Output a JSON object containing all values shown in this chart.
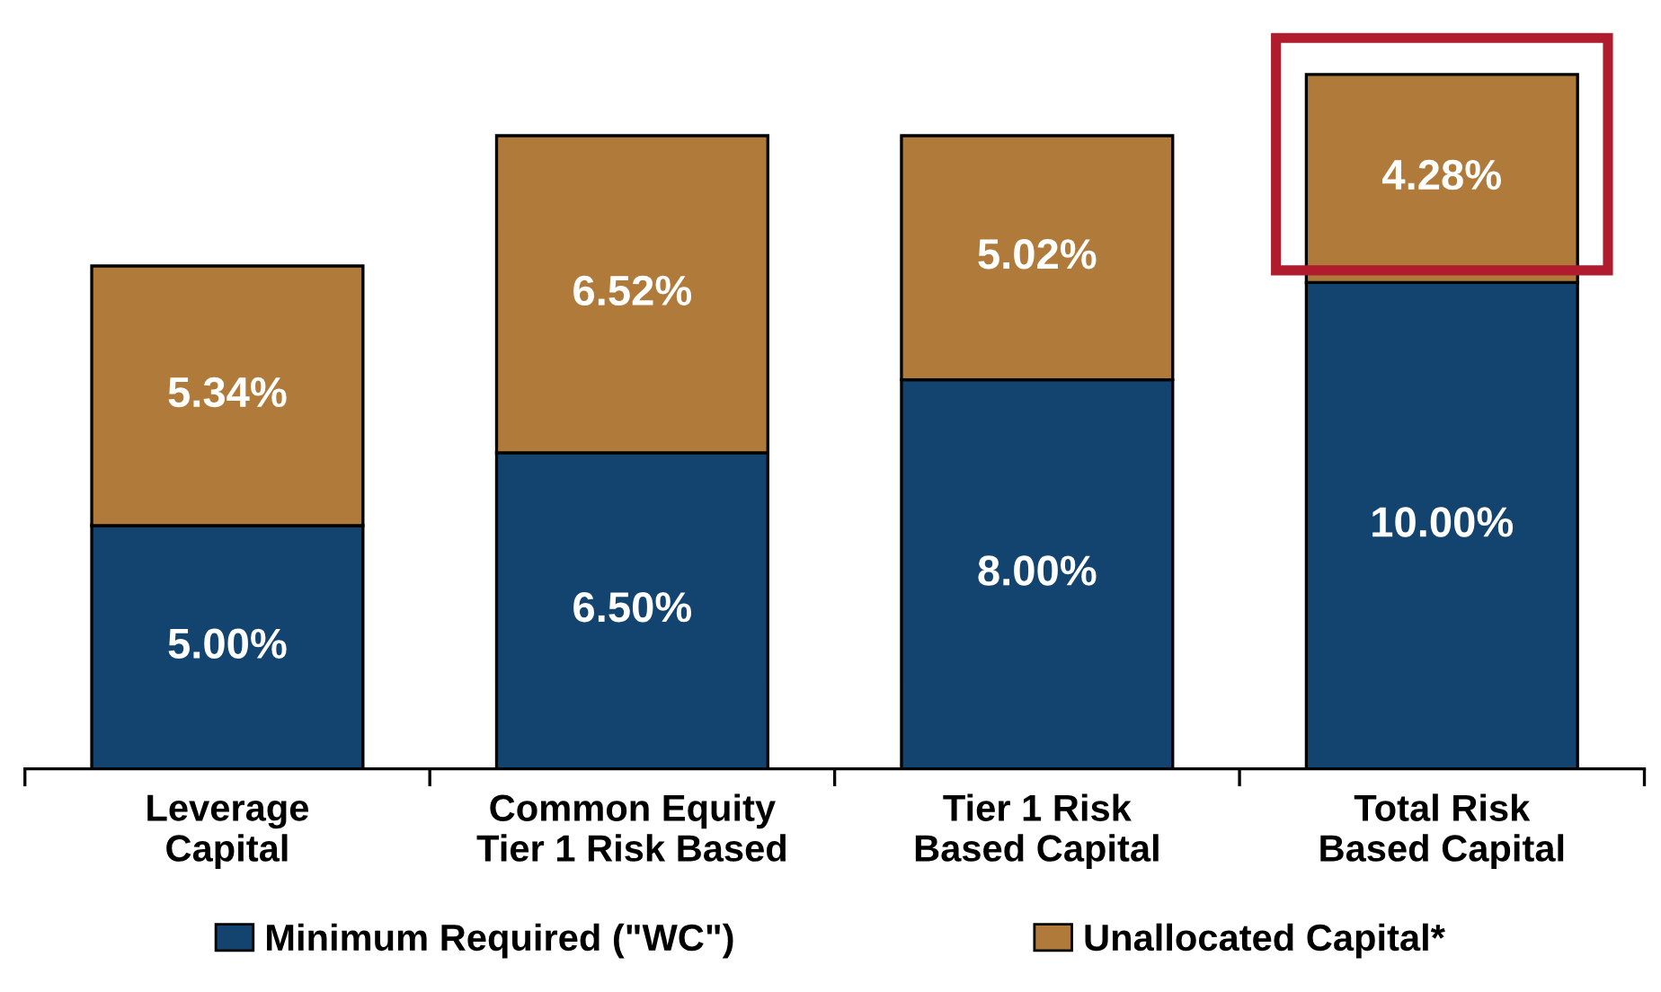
{
  "chart_data": {
    "type": "bar",
    "stacked": true,
    "categories": [
      "Leverage\nCapital",
      "Common Equity\nTier 1 Risk Based",
      "Tier 1 Risk\nBased Capital",
      "Total Risk\nBased Capital"
    ],
    "series": [
      {
        "name": "Minimum Required (\"WC\")",
        "color": "#12446f",
        "values": [
          5.0,
          6.5,
          8.0,
          10.0
        ],
        "value_labels": [
          "5.00%",
          "6.50%",
          "8.00%",
          "10.00%"
        ]
      },
      {
        "name": "Unallocated Capital*",
        "color": "#b07a3a",
        "values": [
          5.34,
          6.52,
          5.02,
          4.28
        ],
        "value_labels": [
          "5.34%",
          "6.52%",
          "5.02%",
          "4.28%"
        ]
      }
    ],
    "legend": "bottom",
    "grid": false
  }
}
